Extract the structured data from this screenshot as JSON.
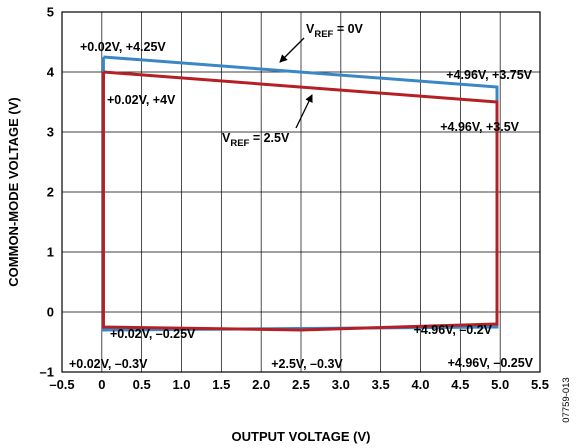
{
  "chart_data": {
    "type": "line",
    "xlabel": "OUTPUT VOLTAGE (V)",
    "ylabel": "COMMON-MODE VOLTAGE (V)",
    "xlim": [
      -0.5,
      5.5
    ],
    "ylim": [
      -1,
      5
    ],
    "xticks": [
      "–0.5",
      "0",
      "0.5",
      "1.0",
      "1.5",
      "2.0",
      "2.5",
      "3.0",
      "3.5",
      "4.0",
      "4.5",
      "5.0",
      "5.5"
    ],
    "yticks": [
      "–1",
      "0",
      "1",
      "2",
      "3",
      "4",
      "5"
    ],
    "grid": true,
    "series": [
      {
        "name": "VREF = 0V",
        "color": "#3a87c8",
        "x": [
          0.02,
          4.96,
          4.96,
          0.02,
          0.02
        ],
        "y": [
          4.25,
          3.75,
          -0.25,
          -0.3,
          4.25
        ]
      },
      {
        "name": "VREF = 2.5V",
        "color": "#b32025",
        "x": [
          0.02,
          4.96,
          4.96,
          2.5,
          0.02,
          0.02
        ],
        "y": [
          4.0,
          3.5,
          -0.2,
          -0.3,
          -0.25,
          4.0
        ]
      }
    ],
    "annotations": [
      {
        "text": "+0.02V, +4.25V"
      },
      {
        "text": "+4.96V, +3.75V"
      },
      {
        "text": "+0.02V, +4V"
      },
      {
        "text": "+4.96V, +3.5V"
      },
      {
        "text": "+0.02V, –0.25V"
      },
      {
        "text": "+4.96V, –0.2V"
      },
      {
        "text": "+0.02V, –0.3V"
      },
      {
        "text": "+2.5V, –0.3V"
      },
      {
        "text": "+4.96V, –0.25V"
      }
    ],
    "callouts": [
      {
        "main": "V",
        "sub": "REF",
        "rest": " = 0V"
      },
      {
        "main": "V",
        "sub": "REF",
        "rest": " = 2.5V"
      }
    ]
  },
  "figure_id": "07759-013"
}
